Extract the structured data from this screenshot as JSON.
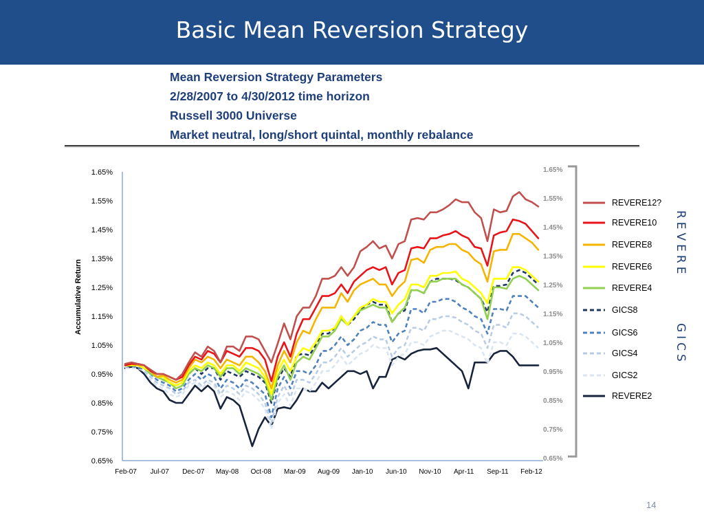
{
  "slide": {
    "title": "Basic Mean Reversion Strategy",
    "params": [
      "Mean Reversion Strategy Parameters",
      "2/28/2007 to 4/30/2012 time horizon",
      "Russell 3000 Universe",
      "Market neutral, long/short quintal, monthly rebalance"
    ],
    "side_label_top": "REVERE",
    "side_label_bottom": "GICS",
    "page_number": "14"
  },
  "colors": {
    "title_bar": "#1f4e8a",
    "REVERE12?": "#c0504d",
    "REVERE10": "#e8141a",
    "REVERE8": "#f5b400",
    "REVERE6": "#ffff00",
    "REVERE4": "#92d050",
    "GICS8": "#1f3864",
    "GICS6": "#4f81bd",
    "GICS4": "#b8cce4",
    "GICS2": "#dae5f1",
    "REVERE2": "#17243b"
  },
  "chart_data": {
    "type": "line",
    "title": "",
    "xlabel": "",
    "ylabel": "Accumulative Return",
    "ylim": [
      0.0065,
      0.0165
    ],
    "y_ticks": [
      "1.65%",
      "1.55%",
      "1.45%",
      "1.35%",
      "1.25%",
      "1.15%",
      "1.05%",
      "0.95%",
      "0.85%",
      "0.75%",
      "0.65%"
    ],
    "right_axis_ticks": [
      "1.65%",
      "1.55%",
      "1.45%",
      "1.35%",
      "1.25%",
      "1.15%",
      "1.05%",
      "0.95%",
      "0.85%",
      "0.75%",
      "0.65%"
    ],
    "x_tick_labels": [
      "Feb-07",
      "Jul-07",
      "Dec-07",
      "May-08",
      "Oct-08",
      "Mar-09",
      "Aug-09",
      "Jan-10",
      "Jun-10",
      "Nov-10",
      "Apr-11",
      "Sep-11",
      "Feb-12"
    ],
    "grid": false,
    "legend_position": "right",
    "series": [
      {
        "name": "REVERE12?",
        "style": "solid",
        "values": [
          0.00985,
          0.0099,
          0.00985,
          0.0098,
          0.00965,
          0.0095,
          0.0095,
          0.0094,
          0.0093,
          0.0095,
          0.0099,
          0.01025,
          0.0101,
          0.01045,
          0.0103,
          0.0099,
          0.01045,
          0.01045,
          0.0103,
          0.0108,
          0.0108,
          0.0107,
          0.0103,
          0.0099,
          0.01055,
          0.01125,
          0.0107,
          0.0115,
          0.0118,
          0.0118,
          0.0122,
          0.0128,
          0.0128,
          0.0129,
          0.0132,
          0.0129,
          0.0132,
          0.01375,
          0.0139,
          0.0141,
          0.01385,
          0.01395,
          0.0135,
          0.014,
          0.0141,
          0.01485,
          0.0149,
          0.01485,
          0.0151,
          0.0151,
          0.0152,
          0.01535,
          0.01555,
          0.01545,
          0.01545,
          0.0151,
          0.0149,
          0.0141,
          0.0152,
          0.0151,
          0.01515,
          0.01565,
          0.0158,
          0.01555,
          0.01545,
          0.0153
        ]
      },
      {
        "name": "REVERE10",
        "style": "solid",
        "values": [
          0.0098,
          0.00985,
          0.00985,
          0.0098,
          0.0096,
          0.0095,
          0.0095,
          0.0094,
          0.0093,
          0.0094,
          0.0098,
          0.0101,
          0.01,
          0.0103,
          0.0102,
          0.0099,
          0.0103,
          0.0102,
          0.0101,
          0.0104,
          0.0104,
          0.0103,
          0.01,
          0.00925,
          0.0101,
          0.0106,
          0.0101,
          0.0109,
          0.0114,
          0.0114,
          0.0118,
          0.0122,
          0.0122,
          0.0123,
          0.0126,
          0.0123,
          0.0127,
          0.0129,
          0.0131,
          0.0132,
          0.0131,
          0.0132,
          0.0126,
          0.013,
          0.0131,
          0.01385,
          0.0139,
          0.01385,
          0.0142,
          0.0142,
          0.0143,
          0.01435,
          0.01445,
          0.0143,
          0.0142,
          0.0139,
          0.01385,
          0.01325,
          0.0143,
          0.0144,
          0.01445,
          0.01485,
          0.0148,
          0.0147,
          0.01445,
          0.0142
        ]
      },
      {
        "name": "REVERE8",
        "style": "solid",
        "values": [
          0.0098,
          0.00985,
          0.0098,
          0.0098,
          0.0096,
          0.0094,
          0.00945,
          0.0093,
          0.0092,
          0.0093,
          0.0097,
          0.01,
          0.0099,
          0.0101,
          0.01,
          0.0097,
          0.01,
          0.0099,
          0.0098,
          0.0101,
          0.0101,
          0.0099,
          0.0096,
          0.009,
          0.0098,
          0.0103,
          0.0099,
          0.0106,
          0.011,
          0.0109,
          0.0114,
          0.0118,
          0.0118,
          0.0118,
          0.0123,
          0.012,
          0.0124,
          0.0126,
          0.0127,
          0.0128,
          0.0126,
          0.0126,
          0.0122,
          0.0125,
          0.0127,
          0.01345,
          0.0135,
          0.01335,
          0.0138,
          0.0139,
          0.0139,
          0.014,
          0.014,
          0.0138,
          0.0137,
          0.01345,
          0.0133,
          0.0127,
          0.01375,
          0.0138,
          0.0138,
          0.01435,
          0.01435,
          0.0142,
          0.01405,
          0.0138
        ]
      },
      {
        "name": "REVERE6",
        "style": "solid",
        "values": [
          0.0098,
          0.0098,
          0.0098,
          0.0097,
          0.0096,
          0.0094,
          0.0094,
          0.0092,
          0.0091,
          0.0092,
          0.0096,
          0.0098,
          0.0097,
          0.0099,
          0.0098,
          0.0095,
          0.0098,
          0.0098,
          0.0096,
          0.0099,
          0.0098,
          0.0097,
          0.0094,
          0.0088,
          0.0096,
          0.01,
          0.0096,
          0.0101,
          0.0104,
          0.0103,
          0.0106,
          0.011,
          0.011,
          0.0111,
          0.0115,
          0.0112,
          0.0115,
          0.0118,
          0.0119,
          0.0121,
          0.012,
          0.012,
          0.0116,
          0.0119,
          0.0121,
          0.0126,
          0.0126,
          0.0125,
          0.0129,
          0.0129,
          0.013,
          0.013,
          0.01305,
          0.0128,
          0.0127,
          0.0125,
          0.0123,
          0.01195,
          0.0128,
          0.0128,
          0.0128,
          0.0132,
          0.0132,
          0.0131,
          0.0129,
          0.0127
        ]
      },
      {
        "name": "REVERE4",
        "style": "solid",
        "values": [
          0.0098,
          0.0098,
          0.0098,
          0.0097,
          0.0095,
          0.0094,
          0.0093,
          0.0092,
          0.009,
          0.0091,
          0.0095,
          0.0097,
          0.0096,
          0.0098,
          0.0097,
          0.0094,
          0.0097,
          0.0097,
          0.0095,
          0.0097,
          0.0096,
          0.0095,
          0.0093,
          0.0086,
          0.0094,
          0.0098,
          0.0093,
          0.0099,
          0.0101,
          0.01,
          0.0104,
          0.0108,
          0.0108,
          0.011,
          0.0114,
          0.0112,
          0.0115,
          0.0117,
          0.0118,
          0.0119,
          0.0118,
          0.0118,
          0.0113,
          0.0116,
          0.0118,
          0.0124,
          0.0124,
          0.0123,
          0.0127,
          0.0127,
          0.0128,
          0.0128,
          0.0128,
          0.0126,
          0.0125,
          0.0123,
          0.0121,
          0.0114,
          0.0125,
          0.0125,
          0.01245,
          0.0128,
          0.0129,
          0.0128,
          0.0126,
          0.0124
        ]
      },
      {
        "name": "GICS8",
        "style": "dashed",
        "values": [
          0.0098,
          0.0098,
          0.0098,
          0.0097,
          0.0096,
          0.0094,
          0.0093,
          0.0092,
          0.0091,
          0.0092,
          0.0095,
          0.0097,
          0.0095,
          0.0097,
          0.0097,
          0.0093,
          0.0096,
          0.0095,
          0.0094,
          0.0096,
          0.0095,
          0.0094,
          0.0092,
          0.0085,
          0.0093,
          0.0097,
          0.0094,
          0.01015,
          0.0102,
          0.01015,
          0.0105,
          0.0109,
          0.0109,
          0.0111,
          0.0115,
          0.0112,
          0.0114,
          0.0117,
          0.0119,
          0.012,
          0.0119,
          0.0119,
          0.0113,
          0.0116,
          0.0117,
          0.0124,
          0.0124,
          0.0123,
          0.0127,
          0.0128,
          0.0128,
          0.0128,
          0.01275,
          0.0126,
          0.0125,
          0.0123,
          0.0121,
          0.01165,
          0.01255,
          0.01255,
          0.0126,
          0.013,
          0.0131,
          0.013,
          0.0128,
          0.0126
        ]
      },
      {
        "name": "GICS6",
        "style": "dashed",
        "values": [
          0.0098,
          0.0098,
          0.0097,
          0.0097,
          0.0095,
          0.0093,
          0.0092,
          0.0091,
          0.0089,
          0.009,
          0.0093,
          0.0095,
          0.0093,
          0.0095,
          0.0094,
          0.009,
          0.0093,
          0.0092,
          0.009,
          0.0093,
          0.0092,
          0.009,
          0.0088,
          0.008,
          0.009,
          0.0094,
          0.009,
          0.0096,
          0.0096,
          0.0095,
          0.0098,
          0.0103,
          0.0103,
          0.0105,
          0.0108,
          0.0105,
          0.0107,
          0.011,
          0.0111,
          0.0113,
          0.0112,
          0.0112,
          0.0106,
          0.0109,
          0.011,
          0.01175,
          0.01175,
          0.0116,
          0.012,
          0.012,
          0.0121,
          0.0121,
          0.012,
          0.0118,
          0.0117,
          0.0115,
          0.0114,
          0.0109,
          0.01175,
          0.01175,
          0.0117,
          0.0122,
          0.0122,
          0.0122,
          0.012,
          0.0118
        ]
      },
      {
        "name": "GICS4",
        "style": "dashed",
        "values": [
          0.0098,
          0.0098,
          0.0097,
          0.0096,
          0.0094,
          0.0092,
          0.0091,
          0.009,
          0.0088,
          0.0089,
          0.0092,
          0.0093,
          0.0091,
          0.0093,
          0.0092,
          0.0088,
          0.0091,
          0.009,
          0.0088,
          0.0091,
          0.009,
          0.0088,
          0.0085,
          0.0078,
          0.0087,
          0.0091,
          0.0087,
          0.0093,
          0.0093,
          0.0092,
          0.0095,
          0.0099,
          0.0099,
          0.0101,
          0.0104,
          0.0101,
          0.0103,
          0.0105,
          0.0106,
          0.0108,
          0.0107,
          0.0107,
          0.0101,
          0.0104,
          0.0105,
          0.0111,
          0.0111,
          0.011,
          0.0114,
          0.0114,
          0.0115,
          0.0115,
          0.01145,
          0.0113,
          0.0112,
          0.011,
          0.0109,
          0.0104,
          0.0112,
          0.0112,
          0.0111,
          0.0116,
          0.0116,
          0.0115,
          0.0113,
          0.0111
        ]
      },
      {
        "name": "GICS2",
        "style": "dashed",
        "values": [
          0.0097,
          0.0097,
          0.0097,
          0.0096,
          0.0093,
          0.0091,
          0.009,
          0.0088,
          0.0087,
          0.0088,
          0.0091,
          0.0092,
          0.009,
          0.0092,
          0.0091,
          0.0087,
          0.0089,
          0.0088,
          0.0086,
          0.0089,
          0.0088,
          0.0086,
          0.0083,
          0.0076,
          0.0085,
          0.0088,
          0.0084,
          0.009,
          0.009,
          0.0089,
          0.0092,
          0.0096,
          0.0096,
          0.0098,
          0.0101,
          0.0098,
          0.01,
          0.0102,
          0.0103,
          0.0105,
          0.0104,
          0.0104,
          0.0098,
          0.0101,
          0.0102,
          0.0106,
          0.0106,
          0.0105,
          0.0108,
          0.0109,
          0.011,
          0.011,
          0.0109,
          0.0108,
          0.0107,
          0.0105,
          0.0104,
          0.00985,
          0.0106,
          0.0106,
          0.0105,
          0.0109,
          0.0109,
          0.0108,
          0.0106,
          0.0104
        ]
      },
      {
        "name": "REVERE2",
        "style": "solid",
        "values": [
          0.0097,
          0.00975,
          0.0097,
          0.0095,
          0.0092,
          0.009,
          0.0089,
          0.0086,
          0.0085,
          0.0085,
          0.0088,
          0.0091,
          0.0089,
          0.0091,
          0.0089,
          0.0083,
          0.0087,
          0.0086,
          0.0084,
          0.0077,
          0.007,
          0.0076,
          0.008,
          0.0077,
          0.0083,
          0.00835,
          0.0083,
          0.0086,
          0.009,
          0.0089,
          0.0089,
          0.0092,
          0.009,
          0.0092,
          0.0094,
          0.0096,
          0.0096,
          0.0095,
          0.0096,
          0.009,
          0.0094,
          0.0094,
          0.01,
          0.0101,
          0.01,
          0.0102,
          0.0103,
          0.01035,
          0.01035,
          0.0104,
          0.0102,
          0.01,
          0.0098,
          0.0096,
          0.009,
          0.0099,
          0.0099,
          0.0099,
          0.0102,
          0.0103,
          0.0103,
          0.0101,
          0.0098,
          0.0098,
          0.0098,
          0.0098
        ]
      }
    ]
  }
}
